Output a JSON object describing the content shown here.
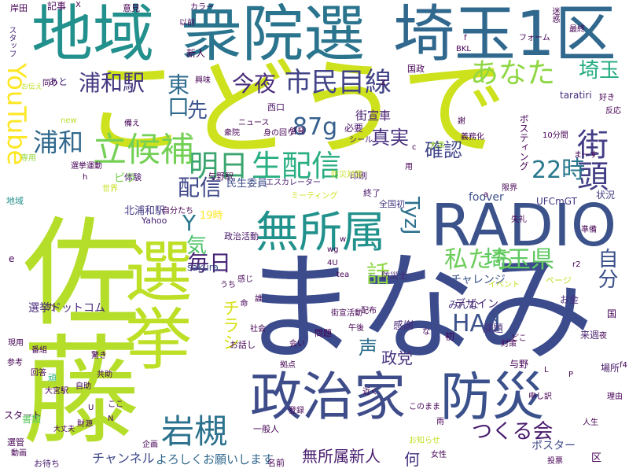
{
  "words": [
    {
      "text": "まなみ",
      "color": "#3b4b8c"
    },
    {
      "text": "佐藤",
      "color": "#b5de2b"
    },
    {
      "text": "こどうで",
      "color": "#cde11d"
    },
    {
      "text": "地域",
      "color": "#22908c"
    },
    {
      "text": "衆院選",
      "color": "#2b748e"
    },
    {
      "text": "埼玉1区",
      "color": "#31688e"
    },
    {
      "text": "選挙",
      "color": "#bddf26"
    },
    {
      "text": "RADIO",
      "color": "#3b528b"
    },
    {
      "text": "政治家",
      "color": "#3e4c8a"
    },
    {
      "text": "防災",
      "color": "#3b518b"
    },
    {
      "text": "無所属",
      "color": "#21918c"
    },
    {
      "text": "明日",
      "color": "#3ba56f"
    },
    {
      "text": "生配信",
      "color": "#28ae80"
    },
    {
      "text": "立候補",
      "color": "#74d055"
    },
    {
      "text": "市民目線",
      "color": "#414487"
    },
    {
      "text": "あなた",
      "color": "#8fd744"
    },
    {
      "text": "今夜",
      "color": "#472a7a"
    },
    {
      "text": "浦和駅",
      "color": "#453781"
    },
    {
      "text": "街頭",
      "color": "#433e85"
    },
    {
      "text": "岩槻",
      "color": "#2c728e"
    },
    {
      "text": "私たち",
      "color": "#6ccd5a"
    },
    {
      "text": "埼玉県",
      "color": "#5ec962"
    },
    {
      "text": "毎日",
      "color": "#482576"
    },
    {
      "text": "配信",
      "color": "#3f4889"
    },
    {
      "text": "22時",
      "color": "#2a788e"
    },
    {
      "text": "87g",
      "color": "#355f8d"
    },
    {
      "text": "浦和",
      "color": "#31688e"
    },
    {
      "text": "HAd",
      "color": "#3b528b"
    },
    {
      "text": "真実",
      "color": "#472f7d"
    },
    {
      "text": "確認",
      "color": "#404688"
    },
    {
      "text": "つくる会",
      "color": "#481b6d"
    },
    {
      "text": "無所属新人",
      "color": "#481c6e"
    },
    {
      "text": "よろしくお願いします",
      "color": "#31688e"
    },
    {
      "text": "政党",
      "color": "#46327e"
    },
    {
      "text": "埼玉",
      "color": "#25ac82"
    },
    {
      "text": "東口",
      "color": "#2f6c8e"
    },
    {
      "text": "YouTube",
      "color": "#fde725"
    },
    {
      "text": "Y",
      "color": "#2a788e"
    },
    {
      "text": "TyzJ",
      "color": "#2d708e"
    },
    {
      "text": "先",
      "color": "#3a548c"
    },
    {
      "text": "話",
      "color": "#8fd744"
    },
    {
      "text": "自分",
      "color": "#3b518b"
    },
    {
      "text": "声",
      "color": "#2e6e8e"
    },
    {
      "text": "気",
      "color": "#4ec36b"
    },
    {
      "text": "チラシ",
      "color": "#d8e219"
    },
    {
      "text": "何",
      "color": "#46337e"
    },
    {
      "text": "街宣車",
      "color": "#481f70"
    },
    {
      "text": "北浦和駅",
      "color": "#443b84"
    },
    {
      "text": "与野駅",
      "color": "#440154"
    },
    {
      "text": "民生委員",
      "color": "#3d4d8a"
    },
    {
      "text": "エスカレーター",
      "color": "#482173"
    },
    {
      "text": "選挙ドットコム",
      "color": "#482979"
    },
    {
      "text": "チャレンジ",
      "color": "#3b528b"
    },
    {
      "text": "デザイン",
      "color": "#482677"
    },
    {
      "text": "ポスター",
      "color": "#3e4989"
    },
    {
      "text": "チャンネル",
      "color": "#3e4989"
    },
    {
      "text": "シール",
      "color": "#481a6c"
    },
    {
      "text": "ボスティング",
      "color": "#440154"
    },
    {
      "text": "必要",
      "color": "#481467"
    },
    {
      "text": "foover",
      "color": "#3b518b"
    },
    {
      "text": "UFCmGT",
      "color": "#443983"
    },
    {
      "text": "taratiri",
      "color": "#46307e"
    },
    {
      "text": "sakura",
      "color": "#3a548c"
    },
    {
      "text": "Yahoo",
      "color": "#482475"
    },
    {
      "text": "19時",
      "color": "#fde725"
    },
    {
      "text": "政治活動",
      "color": "#481668"
    },
    {
      "text": "全国初",
      "color": "#453882"
    },
    {
      "text": "防災士",
      "color": "#482071"
    },
    {
      "text": "みんな",
      "color": "#46337e"
    },
    {
      "text": "感謝",
      "color": "#482878"
    },
    {
      "text": "お金",
      "color": "#472d7b"
    },
    {
      "text": "課題",
      "color": "#46327e"
    },
    {
      "text": "与野",
      "color": "#440154"
    },
    {
      "text": "来週",
      "color": "#481f70"
    },
    {
      "text": "状況",
      "color": "#433e85"
    },
    {
      "text": "場所",
      "color": "#481769"
    },
    {
      "text": "印刷",
      "color": "#471365"
    },
    {
      "text": "終了",
      "color": "#481668"
    },
    {
      "text": "体験",
      "color": "#481a6c"
    },
    {
      "text": "ピラ",
      "color": "#7ad151"
    },
    {
      "text": "あと",
      "color": "#482677"
    },
    {
      "text": "新人",
      "color": "#440154"
    },
    {
      "text": "スタート",
      "color": "#440154"
    },
    {
      "text": "一般人",
      "color": "#440154"
    },
    {
      "text": "区",
      "color": "#440154"
    },
    {
      "text": "国",
      "color": "#440154"
    },
    {
      "text": "国政",
      "color": "#440154"
    },
    {
      "text": "西口",
      "color": "#481467"
    },
    {
      "text": "好き",
      "color": "#440154"
    },
    {
      "text": "反応",
      "color": "#440154"
    },
    {
      "text": "10分間",
      "color": "#440154"
    },
    {
      "text": "最終",
      "color": "#440154"
    },
    {
      "text": "お話し",
      "color": "#440154"
    },
    {
      "text": "お待ち",
      "color": "#481b6d"
    },
    {
      "text": "名前",
      "color": "#440154"
    },
    {
      "text": "問題",
      "color": "#440154"
    },
    {
      "text": "イベント",
      "color": "#c2df23"
    },
    {
      "text": "ミーティング",
      "color": "#d0e11c"
    },
    {
      "text": "世界",
      "color": "#c8e020"
    },
    {
      "text": "ページ",
      "color": "#bddf26"
    },
    {
      "text": "大事",
      "color": "#a0da39"
    },
    {
      "text": "new",
      "color": "#b8de29"
    },
    {
      "text": "専用",
      "color": "#95d840"
    },
    {
      "text": "書類",
      "color": "#5ec962"
    },
    {
      "text": "頑",
      "color": "#2fb47c"
    },
    {
      "text": "地域",
      "color": "#22908c"
    },
    {
      "text": "記事",
      "color": "#440154"
    },
    {
      "text": "岸田",
      "color": "#440154"
    },
    {
      "text": "意見",
      "color": "#440154"
    },
    {
      "text": "カラー",
      "color": "#440154"
    },
    {
      "text": "以前",
      "color": "#440154"
    },
    {
      "text": "迷惑",
      "color": "#440154"
    },
    {
      "text": "フォーム",
      "color": "#440154"
    },
    {
      "text": "スタッフ",
      "color": "#482878"
    },
    {
      "text": "お伝え",
      "color": "#bddf26"
    },
    {
      "text": "選管",
      "color": "#440154"
    },
    {
      "text": "興味",
      "color": "#440154"
    },
    {
      "text": "ニュース",
      "color": "#440154"
    },
    {
      "text": "身の回り",
      "color": "#440154"
    },
    {
      "text": "啓発",
      "color": "#440154"
    },
    {
      "text": "義務化",
      "color": "#440154"
    },
    {
      "text": "防災対策",
      "color": "#c2df23"
    },
    {
      "text": "備え",
      "color": "#440154"
    },
    {
      "text": "自分たち",
      "color": "#440154"
    },
    {
      "text": "財源",
      "color": "#440154"
    },
    {
      "text": "大丈夫",
      "color": "#440154"
    },
    {
      "text": "動画",
      "color": "#440154"
    },
    {
      "text": "企画",
      "color": "#440154"
    },
    {
      "text": "女性",
      "color": "#440154"
    },
    {
      "text": "お知らせ",
      "color": "#c2df23"
    },
    {
      "text": "人生",
      "color": "#440154"
    },
    {
      "text": "理由",
      "color": "#440154"
    },
    {
      "text": "申し訳",
      "color": "#440154"
    },
    {
      "text": "投票",
      "color": "#440154"
    },
    {
      "text": "登録",
      "color": "#440154"
    },
    {
      "text": "近く",
      "color": "#440154"
    },
    {
      "text": "拠点",
      "color": "#440154"
    },
    {
      "text": "会い",
      "color": "#440154"
    },
    {
      "text": "配布",
      "color": "#440154"
    },
    {
      "text": "4U",
      "color": "#440154"
    },
    {
      "text": "wg",
      "color": "#440154"
    },
    {
      "text": "tea",
      "color": "#440154"
    },
    {
      "text": "誰",
      "color": "#440154"
    },
    {
      "text": "社会",
      "color": "#440154"
    },
    {
      "text": "街宣活動",
      "color": "#440154"
    },
    {
      "text": "午後",
      "color": "#440154"
    },
    {
      "text": "対策",
      "color": "#440154"
    },
    {
      "text": "このまま",
      "color": "#440154"
    },
    {
      "text": "限界",
      "color": "#440154"
    },
    {
      "text": "失礼",
      "color": "#440154"
    },
    {
      "text": "準備",
      "color": "#440154"
    },
    {
      "text": "まーす",
      "color": "#440154"
    },
    {
      "text": "驚き",
      "color": "#440154"
    },
    {
      "text": "共助",
      "color": "#440154"
    },
    {
      "text": "自助",
      "color": "#440154"
    },
    {
      "text": "大宮駅",
      "color": "#440154"
    },
    {
      "text": "現用",
      "color": "#440154"
    },
    {
      "text": "回答",
      "color": "#440154"
    },
    {
      "text": "番組",
      "color": "#440154"
    },
    {
      "text": "参考",
      "color": "#440154"
    },
    {
      "text": "選挙運動",
      "color": "#440154"
    },
    {
      "text": "命",
      "color": "#440154"
    },
    {
      "text": "感じ",
      "color": "#440154"
    },
    {
      "text": "初",
      "color": "#440154"
    },
    {
      "text": "どこ",
      "color": "#440154"
    },
    {
      "text": "ここ",
      "color": "#440154"
    },
    {
      "text": "雨",
      "color": "#440154"
    },
    {
      "text": "うち",
      "color": "#440154"
    },
    {
      "text": "同り",
      "color": "#440154"
    },
    {
      "text": "衆院",
      "color": "#440154"
    },
    {
      "text": "BKL",
      "color": "#440154"
    },
    {
      "text": "N",
      "color": "#440154"
    },
    {
      "text": "U",
      "color": "#440154"
    },
    {
      "text": "L",
      "color": "#440154"
    },
    {
      "text": "P",
      "color": "#440154"
    },
    {
      "text": "X",
      "color": "#440154"
    },
    {
      "text": "Z",
      "color": "#440154"
    },
    {
      "text": "f",
      "color": "#440154"
    },
    {
      "text": "e",
      "color": "#440154"
    },
    {
      "text": "w",
      "color": "#440154"
    },
    {
      "text": "c",
      "color": "#440154"
    },
    {
      "text": "h",
      "color": "#440154"
    },
    {
      "text": "a",
      "color": "#440154"
    },
    {
      "text": "r2",
      "color": "#440154"
    },
    {
      "text": "f4",
      "color": "#440154"
    },
    {
      "text": "夜",
      "color": "#440154"
    },
    {
      "text": "用",
      "color": "#440154"
    },
    {
      "text": "力",
      "color": "#440154"
    },
    {
      "text": "謝",
      "color": "#440154"
    },
    {
      "text": "な",
      "color": "#440154"
    }
  ]
}
